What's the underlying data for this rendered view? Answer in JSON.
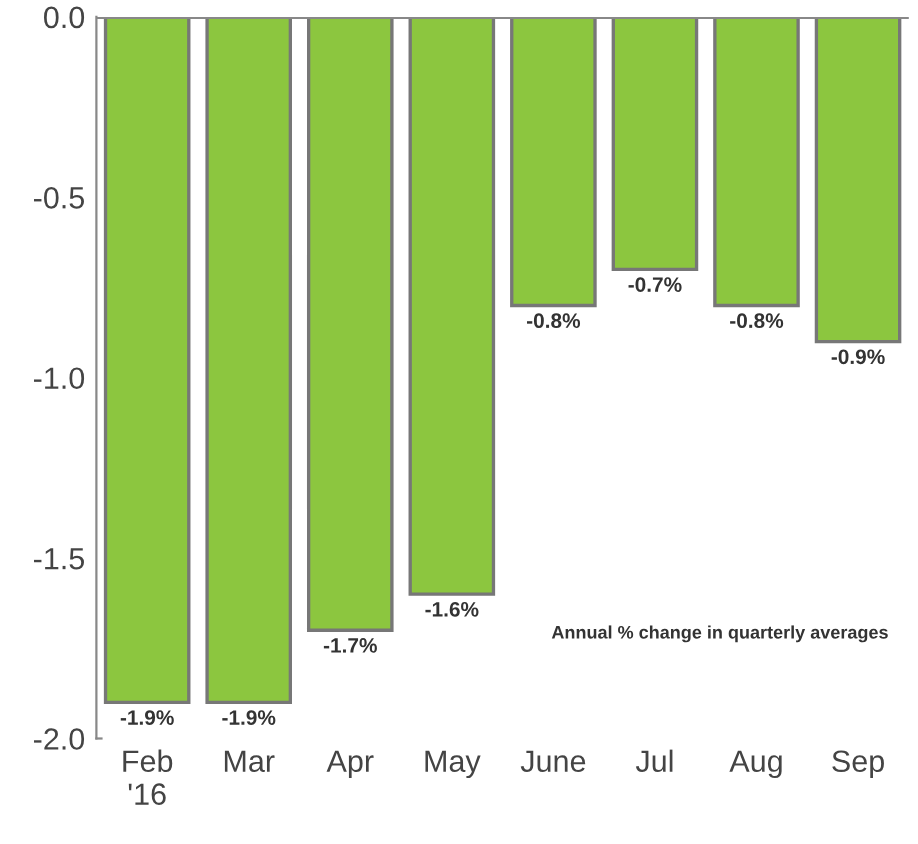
{
  "chart_data": {
    "type": "bar",
    "categories": [
      "Feb\n'16",
      "Mar",
      "Apr",
      "May",
      "June",
      "Jul",
      "Aug",
      "Sep"
    ],
    "values": [
      -1.9,
      -1.9,
      -1.7,
      -1.6,
      -0.8,
      -0.7,
      -0.8,
      -0.9
    ],
    "value_labels": [
      "-1.9%",
      "-1.9%",
      "-1.7%",
      "-1.6%",
      "-0.8%",
      "-0.7%",
      "-0.8%",
      "-0.9%"
    ],
    "color": "#8cc63f",
    "ylim": [
      -2.0,
      0.0
    ],
    "yticks": [
      {
        "value": 0.0,
        "label": "0.0"
      },
      {
        "value": -0.5,
        "label": "-0.5"
      },
      {
        "value": -1.0,
        "label": "-1.0"
      },
      {
        "value": -1.5,
        "label": "-1.5"
      },
      {
        "value": -2.0,
        "label": "-2.0"
      }
    ],
    "grid": false,
    "annotations": [
      "Annual % change in quarterly averages"
    ]
  }
}
